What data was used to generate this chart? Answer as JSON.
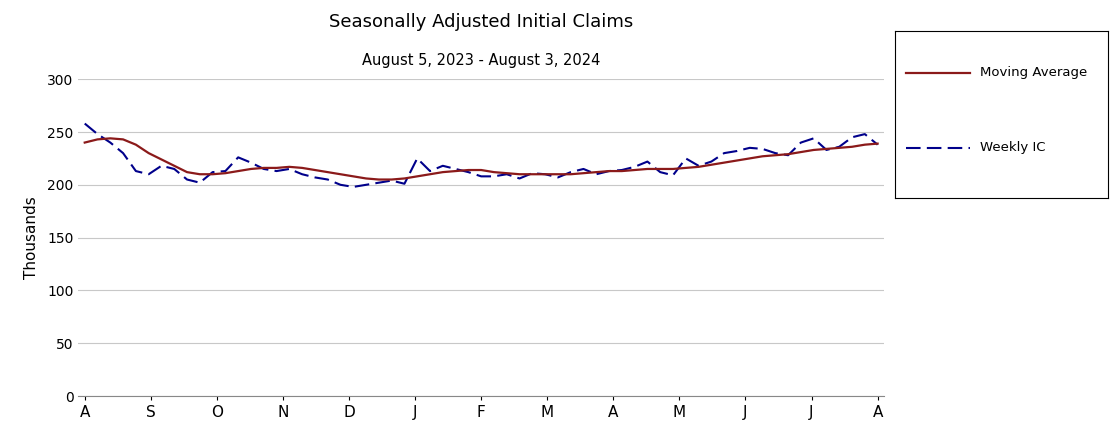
{
  "title": "Seasonally Adjusted Initial Claims",
  "subtitle": "August 5, 2023 - August 3, 2024",
  "ylabel": "Thousands",
  "xlabel_ticks": [
    "A",
    "S",
    "O",
    "N",
    "D",
    "J",
    "F",
    "M",
    "A",
    "M",
    "J",
    "J",
    "A"
  ],
  "ylim": [
    0,
    300
  ],
  "yticks": [
    0,
    50,
    100,
    150,
    200,
    250,
    300
  ],
  "ma_color": "#8B1A1A",
  "weekly_color": "#00008B",
  "bg_color": "#FFFFFF",
  "grid_color": "#C8C8C8",
  "weekly_ic": [
    258,
    248,
    240,
    230,
    213,
    210,
    218,
    215,
    205,
    202,
    212,
    213,
    226,
    221,
    215,
    213,
    215,
    210,
    207,
    205,
    200,
    198,
    200,
    202,
    204,
    201,
    225,
    213,
    218,
    215,
    212,
    208,
    208,
    210,
    206,
    211,
    210,
    207,
    212,
    215,
    210,
    213,
    214,
    217,
    222,
    212,
    209,
    225,
    218,
    222,
    230,
    232,
    235,
    234,
    230,
    228,
    240,
    244,
    233,
    236,
    245,
    248,
    238
  ],
  "moving_avg": [
    240,
    243,
    244,
    243,
    238,
    230,
    224,
    218,
    212,
    210,
    210,
    211,
    213,
    215,
    216,
    216,
    217,
    216,
    214,
    212,
    210,
    208,
    206,
    205,
    205,
    206,
    208,
    210,
    212,
    213,
    214,
    214,
    212,
    211,
    210,
    210,
    210,
    210,
    210,
    211,
    212,
    213,
    213,
    214,
    215,
    215,
    215,
    216,
    217,
    219,
    221,
    223,
    225,
    227,
    228,
    229,
    231,
    233,
    234,
    235,
    236,
    238,
    239
  ]
}
